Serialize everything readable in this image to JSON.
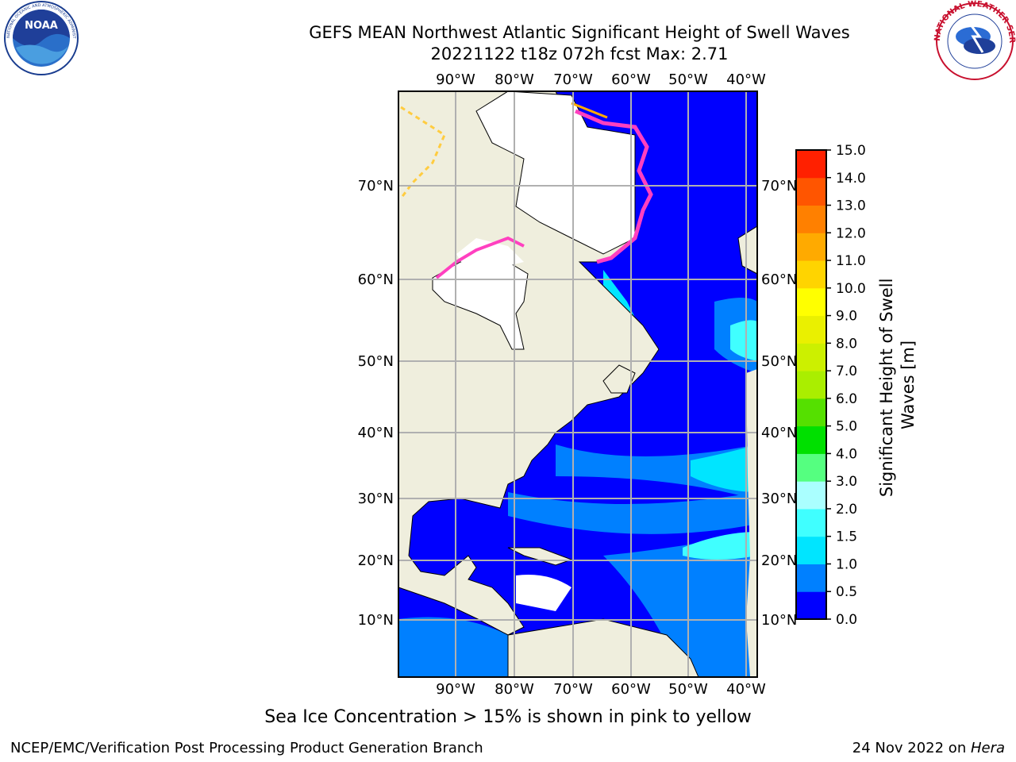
{
  "header": {
    "title_line1": "GEFS MEAN Northwest Atlantic Significant Height of Swell Waves",
    "title_line2": "20221122 t18z 072h fcst   Max: 2.71"
  },
  "logos": {
    "left": "NOAA",
    "left_ring_text": "NATIONAL OCEANIC AND ATMOSPHERIC ADMINISTRATION · U.S. DEPARTMENT OF COMMERCE",
    "right_ring_text": "NATIONAL WEATHER SERVICE"
  },
  "map": {
    "lon_labels": [
      "90°W",
      "80°W",
      "70°W",
      "60°W",
      "50°W",
      "40°W"
    ],
    "lat_labels": [
      "70°N",
      "60°N",
      "50°N",
      "40°N",
      "30°N",
      "20°N",
      "10°N"
    ]
  },
  "colorbar": {
    "label": "Significant Height of Swell Waves [m]",
    "levels": [
      "0.0",
      "0.5",
      "1.0",
      "1.5",
      "2.0",
      "3.0",
      "4.0",
      "5.0",
      "6.0",
      "7.0",
      "8.0",
      "9.0",
      "10.0",
      "11.0",
      "12.0",
      "13.0",
      "14.0",
      "15.0"
    ],
    "colors": [
      "#0000ff",
      "#0080ff",
      "#00e5ff",
      "#40ffff",
      "#aaffff",
      "#55ff80",
      "#00e000",
      "#55e000",
      "#aaee00",
      "#ccf000",
      "#eaf000",
      "#ffff00",
      "#ffd400",
      "#ffaa00",
      "#ff8000",
      "#ff5500",
      "#ff2000"
    ]
  },
  "footer": {
    "caption": "Sea Ice Concentration > 15% is shown in pink to yellow",
    "credit": "NCEP/EMC/Verification Post Processing Product Generation Branch",
    "date_prefix": "24 Nov 2022 on ",
    "host": "Hera"
  }
}
